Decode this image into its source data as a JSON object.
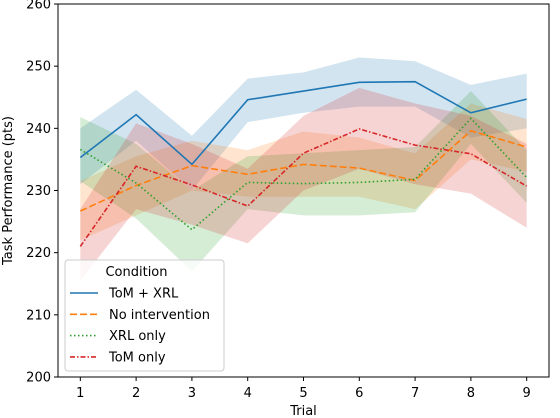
{
  "chart_data": {
    "type": "line",
    "title": "",
    "xlabel": "Trial",
    "ylabel": "Task Performance (pts)",
    "x": [
      1,
      2,
      3,
      4,
      5,
      6,
      7,
      8,
      9
    ],
    "xlim": [
      0.6,
      9.4
    ],
    "ylim": [
      200,
      260
    ],
    "yticks": [
      200,
      210,
      220,
      230,
      240,
      250,
      260
    ],
    "grid": false,
    "legend": {
      "title": "Condition",
      "placement": "bottom-left"
    },
    "series": [
      {
        "name": "ToM + XRL",
        "color": "#1f77b4",
        "dash": "solid",
        "values": [
          235.3,
          242.2,
          234.2,
          244.6,
          246.0,
          247.4,
          247.5,
          242.5,
          244.7
        ],
        "lower": [
          231.0,
          238.0,
          230.0,
          241.0,
          242.5,
          243.5,
          243.5,
          238.5,
          240.0
        ],
        "upper": [
          240.0,
          246.2,
          238.8,
          248.0,
          249.0,
          251.4,
          250.8,
          247.0,
          248.8
        ]
      },
      {
        "name": "No intervention",
        "color": "#ff7f0e",
        "dash": "dashed",
        "values": [
          226.7,
          230.8,
          234.0,
          232.6,
          234.2,
          233.6,
          231.6,
          239.6,
          237.0
        ],
        "lower": [
          222.0,
          226.0,
          230.0,
          229.0,
          229.0,
          229.0,
          227.0,
          235.0,
          233.0
        ],
        "upper": [
          231.5,
          235.5,
          238.0,
          236.5,
          239.5,
          238.5,
          236.0,
          244.0,
          241.5
        ]
      },
      {
        "name": "XRL only",
        "color": "#2ca02c",
        "dash": "dotted",
        "values": [
          236.6,
          231.2,
          223.7,
          231.3,
          231.1,
          231.3,
          231.8,
          241.6,
          232.1
        ],
        "lower": [
          231.5,
          225.5,
          217.0,
          227.0,
          226.0,
          226.0,
          226.5,
          237.5,
          228.0
        ],
        "upper": [
          241.8,
          237.5,
          230.0,
          235.5,
          236.0,
          236.5,
          237.0,
          246.0,
          236.5
        ]
      },
      {
        "name": "ToM only",
        "color": "#d62728",
        "dash": "dashdot",
        "values": [
          221.0,
          233.9,
          230.9,
          227.5,
          236.0,
          239.9,
          237.3,
          235.9,
          230.7
        ],
        "lower": [
          215.5,
          227.0,
          224.5,
          221.5,
          230.0,
          233.5,
          231.0,
          229.5,
          224.0
        ],
        "upper": [
          227.0,
          240.8,
          237.5,
          233.5,
          242.0,
          246.5,
          244.0,
          242.0,
          237.5
        ]
      }
    ]
  }
}
